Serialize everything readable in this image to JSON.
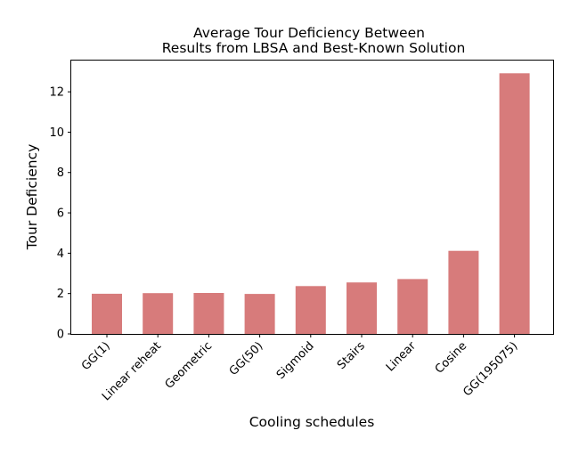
{
  "chart_data": {
    "type": "bar",
    "title_lines": [
      "Average Tour Deficiency Between",
      "Results from LBSA and Best-Known Solution"
    ],
    "xlabel": "Cooling schedules",
    "ylabel": "Tour Deficiency",
    "categories": [
      "GG(1)",
      "Linear reheat",
      "Geometric",
      "GG(50)",
      "Sigmoid",
      "Stairs",
      "Linear",
      "Cosine",
      "GG(195075)"
    ],
    "values": [
      1.99,
      2.02,
      2.03,
      1.98,
      2.37,
      2.55,
      2.72,
      4.12,
      12.92
    ],
    "ylim": [
      0,
      13.55
    ],
    "yticks": [
      "0",
      "2",
      "4",
      "6",
      "8",
      "10",
      "12"
    ],
    "bar_color": "#d77b7b",
    "grid": false,
    "legend": "none"
  }
}
